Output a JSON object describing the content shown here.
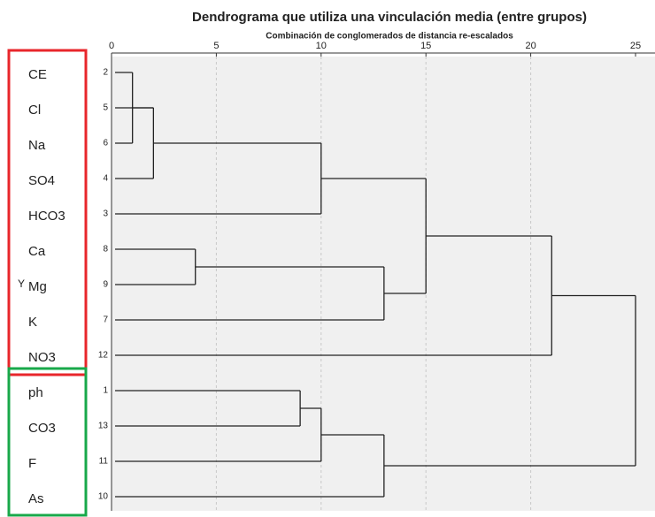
{
  "chart_data": {
    "type": "dendrogram",
    "title": "Dendrograma que utiliza una vinculación media (entre grupos)",
    "subtitle": "Combinación de conglomerados de distancia re-escalados",
    "y_label": "Y",
    "variables": [
      "CE",
      "Cl",
      "Na",
      "SO4",
      "HCO3",
      "Ca",
      "Mg",
      "K",
      "NO3",
      "ph",
      "CO3",
      "F",
      "As"
    ],
    "leaf_numbers": [
      "2",
      "5",
      "6",
      "4",
      "3",
      "8",
      "9",
      "7",
      "12",
      "1",
      "13",
      "11",
      "10"
    ],
    "groups": [
      {
        "name": "red",
        "color": "#e8262b",
        "size": 9
      },
      {
        "name": "green",
        "color": "#18a84a",
        "size": 4
      }
    ],
    "merges": [
      {
        "children": [
          0,
          2
        ],
        "height": 1
      },
      {
        "children": [
          13,
          1,
          3
        ],
        "height": 2
      },
      {
        "children": [
          14,
          4
        ],
        "height": 10
      },
      {
        "children": [
          5,
          6
        ],
        "height": 4
      },
      {
        "children": [
          16,
          7
        ],
        "height": 13
      },
      {
        "children": [
          15,
          17
        ],
        "height": 15
      },
      {
        "children": [
          18,
          8
        ],
        "height": 21
      },
      {
        "children": [
          9,
          10
        ],
        "height": 9
      },
      {
        "children": [
          20,
          11
        ],
        "height": 10
      },
      {
        "children": [
          21,
          12
        ],
        "height": 13
      },
      {
        "children": [
          19,
          22
        ],
        "height": 25
      }
    ],
    "xlim": [
      0,
      25
    ],
    "xticks": [
      0,
      5,
      10,
      15,
      20,
      25
    ],
    "grid": true
  }
}
